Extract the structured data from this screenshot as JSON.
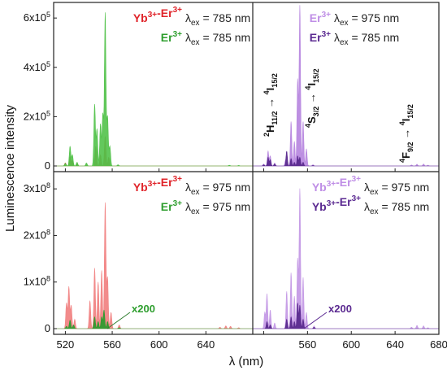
{
  "chart_data": [
    {
      "type": "area",
      "panel": "top-left",
      "ylim": [
        0,
        650000
      ],
      "yticks": [
        {
          "v": 0,
          "label": "0"
        },
        {
          "v": 200000,
          "label": "2x10^5"
        },
        {
          "v": 400000,
          "label": "4x10^5"
        },
        {
          "v": 600000,
          "label": "6x10^5"
        }
      ],
      "legend": [
        {
          "ion": "Yb3+-Er3+",
          "ex": "785 nm",
          "color": "#e0242a"
        },
        {
          "ion": "Er3+",
          "ex": "785 nm",
          "color": "#2e9e2e"
        }
      ],
      "series": [
        {
          "name": "Yb3+-Er3+ λex = 785 nm",
          "fill": "#b5532b",
          "opacity": 0.9,
          "peaks": [
            [
              520,
              12000
            ],
            [
              524,
              38000
            ],
            [
              526,
              22000
            ],
            [
              530,
              9000
            ],
            [
              538,
              5000
            ],
            [
              546,
              80000
            ],
            [
              550,
              45000
            ],
            [
              554,
              120000
            ],
            [
              557,
              35000
            ],
            [
              565,
              3000
            ],
            [
              660,
              1500
            ],
            [
              668,
              1000
            ]
          ]
        },
        {
          "name": "Er3+ λex = 785 nm",
          "fill": "#52c24a",
          "opacity": 0.9,
          "peaks": [
            [
              520,
              10000
            ],
            [
              524,
              80000
            ],
            [
              526,
              45000
            ],
            [
              530,
              15000
            ],
            [
              538,
              12000
            ],
            [
              545,
              250000
            ],
            [
              547,
              150000
            ],
            [
              550,
              170000
            ],
            [
              552,
              210000
            ],
            [
              554,
              620000
            ],
            [
              556,
              200000
            ],
            [
              558,
              80000
            ],
            [
              565,
              5000
            ],
            [
              660,
              3000
            ],
            [
              668,
              2000
            ]
          ]
        }
      ]
    },
    {
      "type": "area",
      "panel": "top-right",
      "ylim": [
        0,
        650000
      ],
      "legend": [
        {
          "ion": "Er3+",
          "ex": "975 nm",
          "color": "#bf8ee6"
        },
        {
          "ion": "Er3+",
          "ex": "785 nm",
          "color": "#5b2a91"
        }
      ],
      "annotations": [
        "2H11/2 → 4I15/2",
        "4S3/2 → 4I15/2",
        "4F9/2 → 4I15/2"
      ],
      "series": [
        {
          "name": "Er3+ λex = 975 nm",
          "fill": "#b98ae0",
          "opacity": 0.95,
          "peaks": [
            [
              520,
              8000
            ],
            [
              524,
              60000
            ],
            [
              526,
              40000
            ],
            [
              530,
              12000
            ],
            [
              540,
              25000
            ],
            [
              545,
              180000
            ],
            [
              548,
              100000
            ],
            [
              551,
              350000
            ],
            [
              553,
              650000
            ],
            [
              556,
              180000
            ],
            [
              559,
              70000
            ],
            [
              565,
              5000
            ],
            [
              655,
              4000
            ],
            [
              660,
              7000
            ],
            [
              666,
              8000
            ],
            [
              670,
              3000
            ]
          ]
        },
        {
          "name": "Er3+ λex = 785 nm",
          "fill": "#5a2a8e",
          "opacity": 0.95,
          "peaks": [
            [
              520,
              5000
            ],
            [
              524,
              35000
            ],
            [
              526,
              25000
            ],
            [
              530,
              8000
            ],
            [
              541,
              60000
            ],
            [
              545,
              30000
            ],
            [
              548,
              15000
            ],
            [
              551,
              40000
            ],
            [
              553,
              35000
            ],
            [
              556,
              15000
            ],
            [
              565,
              2000
            ]
          ]
        }
      ]
    },
    {
      "type": "area",
      "panel": "bottom-left",
      "ylim": [
        0,
        330000000
      ],
      "yticks": [
        {
          "v": 0,
          "label": "0"
        },
        {
          "v": 100000000,
          "label": "1x10^8"
        },
        {
          "v": 200000000,
          "label": "2x10^8"
        },
        {
          "v": 300000000,
          "label": "3x10^8"
        }
      ],
      "legend": [
        {
          "ion": "Yb3+-Er3+",
          "ex": "975 nm",
          "color": "#e0242a"
        },
        {
          "ion": "Er3+",
          "ex": "975 nm",
          "color": "#2e9e2e"
        }
      ],
      "annotations": [
        "x200"
      ],
      "series": [
        {
          "name": "Yb3+-Er3+ λex = 975 nm",
          "fill": "#f18585",
          "opacity": 0.95,
          "peaks": [
            [
              521,
              55000000
            ],
            [
              523,
              90000000
            ],
            [
              525,
              50000000
            ],
            [
              528,
              20000000
            ],
            [
              541,
              60000000
            ],
            [
              545,
              130000000
            ],
            [
              548,
              100000000
            ],
            [
              551,
              125000000
            ],
            [
              554,
              270000000
            ],
            [
              556,
              110000000
            ],
            [
              559,
              35000000
            ],
            [
              566,
              8000000
            ],
            [
              652,
              3000000
            ],
            [
              657,
              6000000
            ],
            [
              661,
              5000000
            ],
            [
              668,
              2000000
            ]
          ]
        },
        {
          "name": "Er3+ λex = 975 nm (x200)",
          "fill": "#2f9b2f",
          "opacity": 0.95,
          "peaks": [
            [
              521,
              5000000
            ],
            [
              524,
              18000000
            ],
            [
              527,
              8000000
            ],
            [
              545,
              25000000
            ],
            [
              548,
              15000000
            ],
            [
              551,
              25000000
            ],
            [
              553,
              40000000
            ],
            [
              556,
              15000000
            ],
            [
              566,
              2000000
            ]
          ]
        }
      ]
    },
    {
      "type": "area",
      "panel": "bottom-right",
      "ylim": [
        0,
        330000000
      ],
      "legend": [
        {
          "ion": "Yb3+-Er3+",
          "ex": "975 nm",
          "color": "#bf8ee6"
        },
        {
          "ion": "Yb3+-Er3+",
          "ex": "785 nm",
          "color": "#5b2a91"
        }
      ],
      "annotations": [
        "x200"
      ],
      "series": [
        {
          "name": "Yb3+-Er3+ λex = 975 nm",
          "fill": "#c59be6",
          "opacity": 0.95,
          "peaks": [
            [
              521,
              35000000
            ],
            [
              523,
              75000000
            ],
            [
              526,
              40000000
            ],
            [
              530,
              12000000
            ],
            [
              541,
              80000000
            ],
            [
              545,
              120000000
            ],
            [
              548,
              70000000
            ],
            [
              551,
              150000000
            ],
            [
              553,
              300000000
            ],
            [
              556,
              110000000
            ],
            [
              559,
              35000000
            ],
            [
              566,
              6000000
            ],
            [
              655,
              3000000
            ],
            [
              660,
              7000000
            ],
            [
              666,
              6000000
            ],
            [
              670,
              2000000
            ]
          ]
        },
        {
          "name": "Yb3+-Er3+ λex = 785 nm (x200)",
          "fill": "#5a2a8e",
          "opacity": 0.95,
          "peaks": [
            [
              523,
              15000000
            ],
            [
              526,
              8000000
            ],
            [
              541,
              20000000
            ],
            [
              545,
              25000000
            ],
            [
              548,
              15000000
            ],
            [
              551,
              55000000
            ],
            [
              553,
              50000000
            ],
            [
              556,
              20000000
            ],
            [
              566,
              3000000
            ]
          ]
        }
      ]
    }
  ],
  "shared": {
    "xlim": [
      510,
      680
    ],
    "xticks": [
      "520",
      "560",
      "600",
      "640",
      "680"
    ],
    "xlabel": "λ (nm)",
    "ylabel": "Luminescence intensity"
  },
  "labels": {
    "x200": "x200",
    "lambda_ex": "λex = "
  }
}
